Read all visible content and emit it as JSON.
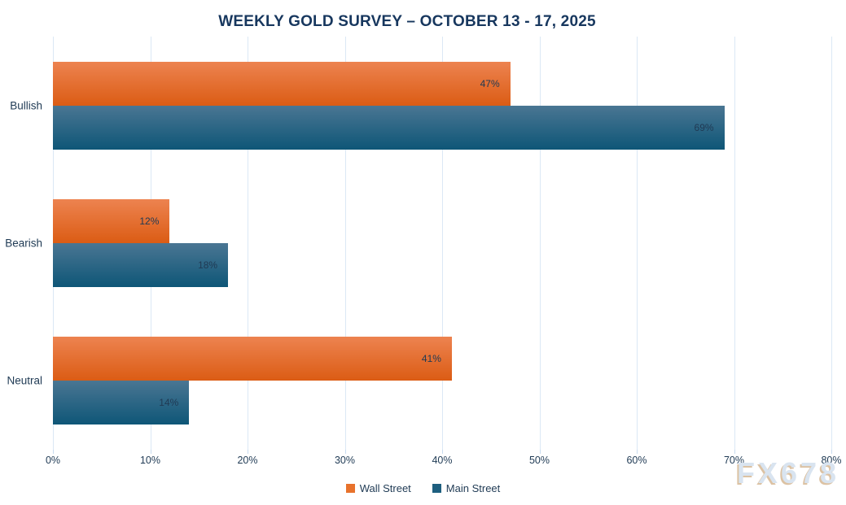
{
  "title": "WEEKLY GOLD SURVEY – OCTOBER 13 - 17, 2025",
  "watermark": "FX678",
  "colors": {
    "title_text": "#17375E",
    "axis_text": "#1F3A54",
    "gridline": "#DBE8F5",
    "value_label_text": "#203A54",
    "watermark_text": "#D9E4F0",
    "watermark_shadow": "#DCC2A3"
  },
  "chart_data": {
    "type": "bar",
    "orientation": "horizontal",
    "title": "WEEKLY GOLD SURVEY – OCTOBER 13 - 17, 2025",
    "categories": [
      "Bullish",
      "Bearish",
      "Neutral"
    ],
    "series": [
      {
        "name": "Wall Street",
        "values": [
          47,
          12,
          41
        ],
        "color_top": "#ED8350",
        "color_bottom": "#DB5C14",
        "legend_color": "#E8722C"
      },
      {
        "name": "Main Street",
        "values": [
          69,
          18,
          14
        ],
        "color_top": "#4A7693",
        "color_bottom": "#0E5677",
        "legend_color": "#1E5F7F"
      }
    ],
    "value_suffix": "%",
    "xlim": [
      0,
      80
    ],
    "x_tick_step": 10,
    "x_tick_labels": [
      "0%",
      "10%",
      "20%",
      "30%",
      "40%",
      "50%",
      "60%",
      "70%",
      "80%"
    ],
    "grid": true,
    "legend_position": "bottom",
    "data_labels": "inside-end"
  }
}
